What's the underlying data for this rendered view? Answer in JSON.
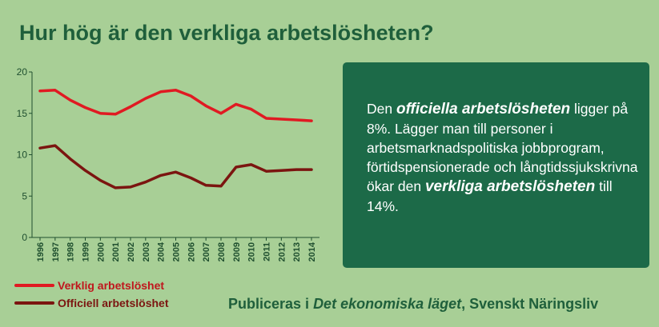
{
  "header": {
    "title": "Hur hög är den verkliga arbetslösheten?"
  },
  "chart_data": {
    "type": "line",
    "title": "Hur hög är den verkliga arbetslösheten?",
    "xlabel": "",
    "ylabel": "",
    "ylim": [
      0,
      20
    ],
    "yticks": [
      0,
      5,
      10,
      15,
      20
    ],
    "x": [
      "1996",
      "1997",
      "1998",
      "1999",
      "2000",
      "2001",
      "2002",
      "2003",
      "2004",
      "2005",
      "2006",
      "2007",
      "2008",
      "2009",
      "2010",
      "2011",
      "2012",
      "2013",
      "2014"
    ],
    "series": [
      {
        "name": "Verklig arbetslöshet",
        "color": "#e01a22",
        "values": [
          17.7,
          17.8,
          16.6,
          15.7,
          15.0,
          14.9,
          15.8,
          16.8,
          17.6,
          17.8,
          17.1,
          15.9,
          15.0,
          16.1,
          15.5,
          14.4,
          14.3,
          14.2,
          14.1
        ]
      },
      {
        "name": "Officiell arbetslöshet",
        "color": "#7b1510",
        "values": [
          10.8,
          11.1,
          9.5,
          8.1,
          6.9,
          6.0,
          6.1,
          6.7,
          7.5,
          7.9,
          7.2,
          6.3,
          6.2,
          8.5,
          8.8,
          8.0,
          8.1,
          8.2,
          8.2
        ]
      }
    ],
    "legend": "bottom-left"
  },
  "info": {
    "part1": "Den ",
    "highlight1": "officiella arbetslösheten",
    "part2": " ligger på 8%. Lägger man till personer i arbetsmarknadspolitiska jobbprogram, förtidspensionerade och långtidssjukskrivna ökar den ",
    "highlight2": "verkliga arbetslösheten",
    "part3": " till 14%."
  },
  "credit": {
    "prefix": "Publiceras i ",
    "publication": "Det ekonomiska läget",
    "suffix": ", Svenskt Näringsliv"
  }
}
